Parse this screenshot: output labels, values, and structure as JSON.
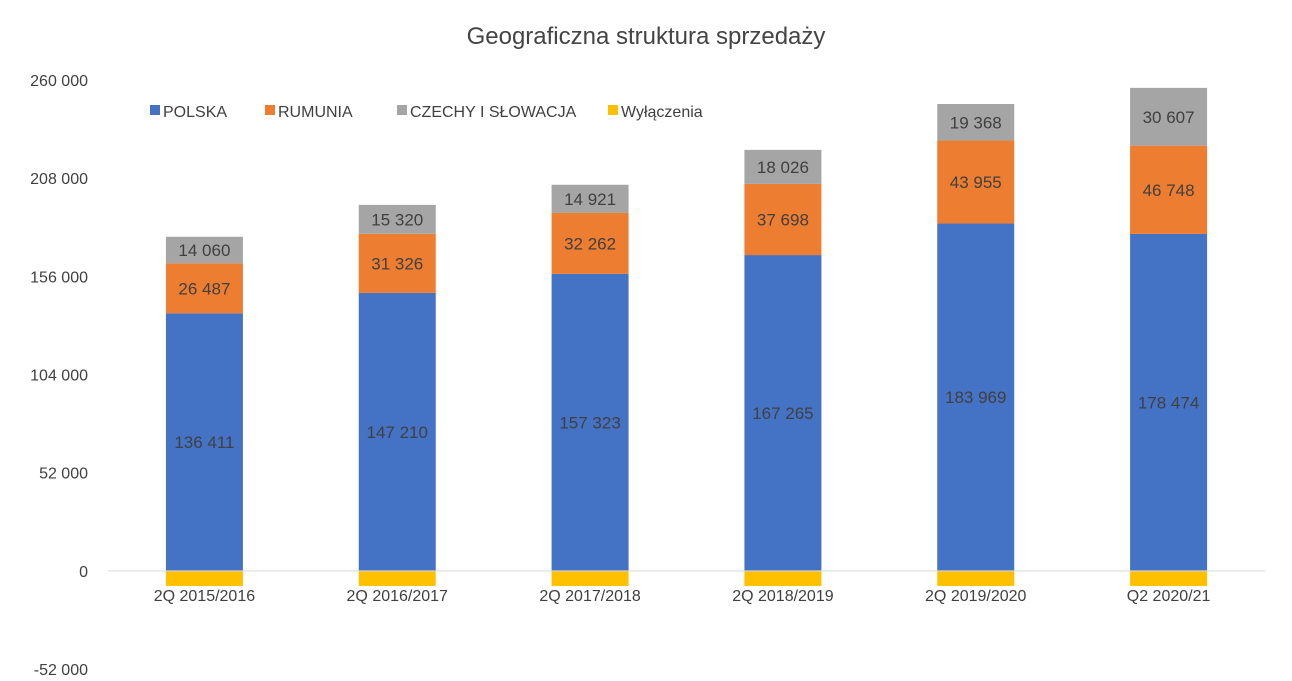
{
  "chart_data": {
    "type": "bar",
    "stacked": true,
    "title": "Geograficzna struktura sprzedaży",
    "categories": [
      "2Q 2015/2016",
      "2Q 2016/2017",
      "2Q 2017/2018",
      "2Q 2018/2019",
      "2Q 2019/2020",
      "Q2 2020/21"
    ],
    "series": [
      {
        "name": "POLSKA",
        "color": "#4472C4",
        "values": [
          136411,
          147210,
          157323,
          167265,
          183969,
          178474
        ],
        "labels": [
          "136 411",
          "147 210",
          "157 323",
          "167 265",
          "183 969",
          "178 474"
        ]
      },
      {
        "name": "RUMUNIA",
        "color": "#ED7D31",
        "values": [
          26487,
          31326,
          32262,
          37698,
          43955,
          46748
        ],
        "labels": [
          "26 487",
          "31 326",
          "32 262",
          "37 698",
          "43 955",
          "46 748"
        ]
      },
      {
        "name": "CZECHY I SŁOWACJA",
        "color": "#A5A5A5",
        "values": [
          14060,
          15320,
          14921,
          18026,
          19368,
          30607
        ],
        "labels": [
          "14 060",
          "15 320",
          "14 921",
          "18 026",
          "19 368",
          "30 607"
        ]
      },
      {
        "name": "Wyłączenia",
        "color": "#FFC000",
        "values": [
          -8000,
          -8000,
          -8000,
          -8000,
          -8000,
          -8000
        ],
        "labels": []
      }
    ],
    "y_ticks": [
      {
        "value": 260000,
        "label": "260 000"
      },
      {
        "value": 208000,
        "label": "208 000"
      },
      {
        "value": 156000,
        "label": "156 000"
      },
      {
        "value": 104000,
        "label": "104 000"
      },
      {
        "value": 52000,
        "label": "52 000"
      },
      {
        "value": 0,
        "label": "0"
      },
      {
        "value": -52000,
        "label": "-52 000"
      }
    ],
    "ylim": [
      -52000,
      260000
    ],
    "grid": false,
    "legend_position": "top-left"
  }
}
